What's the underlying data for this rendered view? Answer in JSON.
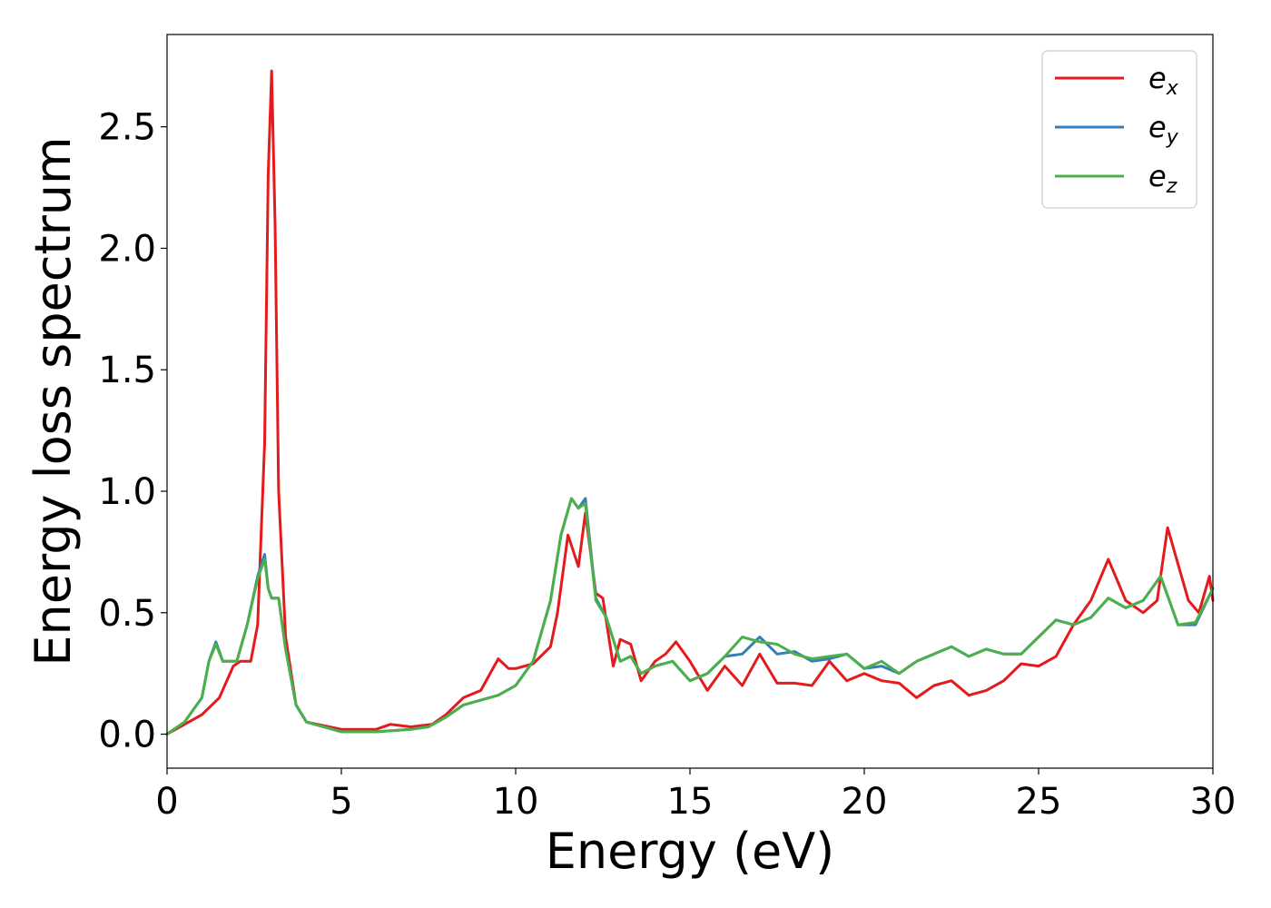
{
  "chart_data": {
    "type": "line",
    "xlabel": "Energy (eV)",
    "ylabel": "Energy loss spectrum",
    "xlim": [
      0,
      30
    ],
    "ylim": [
      -0.14,
      2.88
    ],
    "xticks": [
      0,
      5,
      10,
      15,
      20,
      25,
      30
    ],
    "xtick_labels": [
      "0",
      "5",
      "10",
      "15",
      "20",
      "25",
      "30"
    ],
    "yticks": [
      0.0,
      0.5,
      1.0,
      1.5,
      2.0,
      2.5
    ],
    "ytick_labels": [
      "0.0",
      "0.5",
      "1.0",
      "1.5",
      "2.0",
      "2.5"
    ],
    "grid": false,
    "legend_position": "top-right",
    "series": [
      {
        "name": "e_x",
        "label_base": "e",
        "label_sub": "x",
        "color": "#e41a1c",
        "x": [
          0.0,
          0.5,
          1.0,
          1.5,
          1.9,
          2.1,
          2.4,
          2.6,
          2.8,
          2.9,
          3.0,
          3.1,
          3.2,
          3.4,
          3.7,
          4.0,
          5.0,
          6.0,
          6.4,
          7.0,
          7.6,
          8.0,
          8.5,
          9.0,
          9.5,
          9.8,
          10.0,
          10.5,
          11.0,
          11.2,
          11.5,
          11.8,
          12.0,
          12.3,
          12.5,
          12.8,
          13.0,
          13.3,
          13.6,
          14.0,
          14.3,
          14.6,
          15.0,
          15.5,
          16.0,
          16.5,
          17.0,
          17.5,
          18.0,
          18.5,
          19.0,
          19.5,
          20.0,
          20.5,
          21.0,
          21.5,
          22.0,
          22.5,
          23.0,
          23.5,
          24.0,
          24.5,
          25.0,
          25.5,
          26.0,
          26.5,
          27.0,
          27.5,
          28.0,
          28.4,
          28.7,
          29.0,
          29.3,
          29.6,
          29.9,
          30.0
        ],
        "y": [
          0.0,
          0.04,
          0.08,
          0.15,
          0.28,
          0.3,
          0.3,
          0.45,
          1.2,
          2.3,
          2.73,
          2.1,
          1.0,
          0.4,
          0.12,
          0.05,
          0.02,
          0.02,
          0.04,
          0.03,
          0.04,
          0.08,
          0.15,
          0.18,
          0.31,
          0.27,
          0.27,
          0.29,
          0.36,
          0.5,
          0.82,
          0.69,
          0.91,
          0.58,
          0.56,
          0.28,
          0.39,
          0.37,
          0.22,
          0.3,
          0.33,
          0.38,
          0.3,
          0.18,
          0.28,
          0.2,
          0.33,
          0.21,
          0.21,
          0.2,
          0.3,
          0.22,
          0.25,
          0.22,
          0.21,
          0.15,
          0.2,
          0.22,
          0.16,
          0.18,
          0.22,
          0.29,
          0.28,
          0.32,
          0.45,
          0.55,
          0.72,
          0.55,
          0.5,
          0.55,
          0.85,
          0.7,
          0.55,
          0.5,
          0.65,
          0.55
        ]
      },
      {
        "name": "e_y",
        "label_base": "e",
        "label_sub": "y",
        "color": "#377eb8",
        "x": [
          0.0,
          0.5,
          1.0,
          1.2,
          1.4,
          1.6,
          2.0,
          2.3,
          2.6,
          2.8,
          2.9,
          3.0,
          3.1,
          3.2,
          3.4,
          3.7,
          4.0,
          5.0,
          6.0,
          7.0,
          7.5,
          8.0,
          8.5,
          9.0,
          9.5,
          10.0,
          10.5,
          11.0,
          11.3,
          11.6,
          11.8,
          12.0,
          12.3,
          12.6,
          13.0,
          13.3,
          13.6,
          14.0,
          14.5,
          15.0,
          15.5,
          16.0,
          16.5,
          17.0,
          17.5,
          18.0,
          18.5,
          19.0,
          19.5,
          20.0,
          20.5,
          21.0,
          21.5,
          22.0,
          22.5,
          23.0,
          23.5,
          24.0,
          24.5,
          25.0,
          25.5,
          26.0,
          26.5,
          27.0,
          27.5,
          28.0,
          28.5,
          29.0,
          29.5,
          30.0
        ],
        "y": [
          0.0,
          0.05,
          0.15,
          0.3,
          0.38,
          0.3,
          0.3,
          0.45,
          0.65,
          0.74,
          0.6,
          0.56,
          0.56,
          0.56,
          0.35,
          0.12,
          0.05,
          0.01,
          0.01,
          0.02,
          0.03,
          0.07,
          0.12,
          0.14,
          0.16,
          0.2,
          0.3,
          0.55,
          0.82,
          0.97,
          0.93,
          0.97,
          0.56,
          0.48,
          0.3,
          0.32,
          0.25,
          0.28,
          0.3,
          0.22,
          0.25,
          0.32,
          0.33,
          0.4,
          0.33,
          0.34,
          0.3,
          0.31,
          0.33,
          0.27,
          0.28,
          0.25,
          0.3,
          0.33,
          0.36,
          0.32,
          0.35,
          0.33,
          0.33,
          0.4,
          0.47,
          0.45,
          0.48,
          0.56,
          0.52,
          0.55,
          0.65,
          0.45,
          0.45,
          0.6
        ]
      },
      {
        "name": "e_z",
        "label_base": "e",
        "label_sub": "z",
        "color": "#4daf4a",
        "x": [
          0.0,
          0.5,
          1.0,
          1.2,
          1.4,
          1.6,
          2.0,
          2.3,
          2.6,
          2.8,
          2.9,
          3.0,
          3.1,
          3.2,
          3.4,
          3.7,
          4.0,
          5.0,
          6.0,
          7.0,
          7.5,
          8.0,
          8.5,
          9.0,
          9.5,
          10.0,
          10.5,
          11.0,
          11.3,
          11.6,
          11.8,
          12.0,
          12.3,
          12.6,
          13.0,
          13.3,
          13.6,
          14.0,
          14.5,
          15.0,
          15.5,
          16.0,
          16.5,
          17.0,
          17.5,
          18.0,
          18.5,
          19.0,
          19.5,
          20.0,
          20.5,
          21.0,
          21.5,
          22.0,
          22.5,
          23.0,
          23.5,
          24.0,
          24.5,
          25.0,
          25.5,
          26.0,
          26.5,
          27.0,
          27.5,
          28.0,
          28.5,
          29.0,
          29.5,
          30.0
        ],
        "y": [
          0.0,
          0.05,
          0.15,
          0.3,
          0.37,
          0.3,
          0.3,
          0.45,
          0.64,
          0.72,
          0.6,
          0.56,
          0.56,
          0.56,
          0.35,
          0.12,
          0.05,
          0.01,
          0.01,
          0.02,
          0.03,
          0.07,
          0.12,
          0.14,
          0.16,
          0.2,
          0.3,
          0.55,
          0.82,
          0.97,
          0.93,
          0.95,
          0.55,
          0.48,
          0.3,
          0.32,
          0.25,
          0.28,
          0.3,
          0.22,
          0.25,
          0.32,
          0.4,
          0.38,
          0.37,
          0.33,
          0.31,
          0.32,
          0.33,
          0.27,
          0.3,
          0.25,
          0.3,
          0.33,
          0.36,
          0.32,
          0.35,
          0.33,
          0.33,
          0.4,
          0.47,
          0.45,
          0.48,
          0.56,
          0.52,
          0.55,
          0.65,
          0.45,
          0.46,
          0.6
        ]
      }
    ]
  }
}
